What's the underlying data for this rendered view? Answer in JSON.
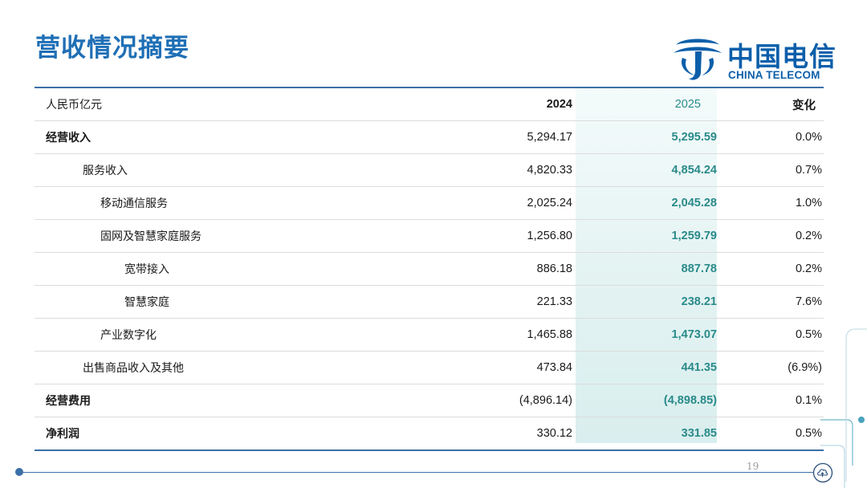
{
  "slide": {
    "title": "营收情况摘要",
    "page_number": "19"
  },
  "logo": {
    "cn": "中国电信",
    "en": "CHINA TELECOM"
  },
  "colors": {
    "title": "#1f6fb5",
    "brand": "#0b5faa",
    "highlight_text": "#2a8a8a",
    "rule": "#3b6fa8"
  },
  "table": {
    "header": {
      "unit": "人民币亿元",
      "y2024": "2024",
      "y2025": "2025",
      "change": "变化"
    },
    "rows": [
      {
        "label": "经营收入",
        "v2024": "5,294.17",
        "v2025": "5,295.59",
        "change": "0.0%"
      },
      {
        "label": "服务收入",
        "v2024": "4,820.33",
        "v2025": "4,854.24",
        "change": "0.7%"
      },
      {
        "label": "移动通信服务",
        "v2024": "2,025.24",
        "v2025": "2,045.28",
        "change": "1.0%"
      },
      {
        "label": "固网及智慧家庭服务",
        "v2024": "1,256.80",
        "v2025": "1,259.79",
        "change": "0.2%"
      },
      {
        "label": "宽带接入",
        "v2024": "886.18",
        "v2025": "887.78",
        "change": "0.2%"
      },
      {
        "label": "智慧家庭",
        "v2024": "221.33",
        "v2025": "238.21",
        "change": "7.6%"
      },
      {
        "label": "产业数字化",
        "v2024": "1,465.88",
        "v2025": "1,473.07",
        "change": "0.5%"
      },
      {
        "label": "出售商品收入及其他",
        "v2024": "473.84",
        "v2025": "441.35",
        "change": "(6.9%)"
      },
      {
        "label": "经营费用",
        "v2024": "(4,896.14)",
        "v2025": "(4,898.85)",
        "change": "0.1%"
      },
      {
        "label": "净利润",
        "v2024": "330.12",
        "v2025": "331.85",
        "change": "0.5%"
      }
    ]
  }
}
